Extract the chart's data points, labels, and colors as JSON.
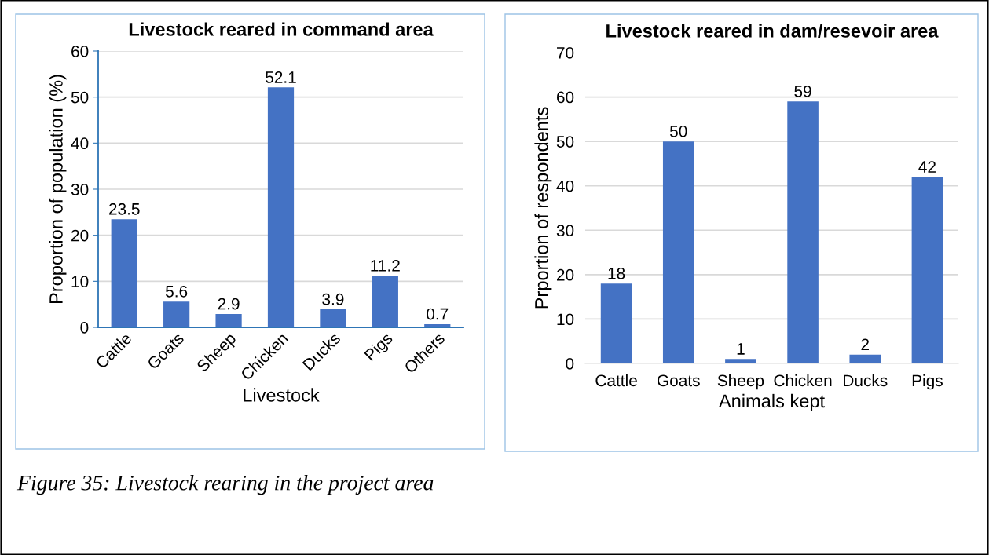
{
  "chart_data": [
    {
      "type": "bar",
      "title": "Livestock reared in command area",
      "xlabel": "Livestock",
      "ylabel": "Proportion of population (%)",
      "categories": [
        "Cattle",
        "Goats",
        "Sheep",
        "Chicken",
        "Ducks",
        "Pigs",
        "Others"
      ],
      "values": [
        23.5,
        5.6,
        2.9,
        52.1,
        3.9,
        11.2,
        0.7
      ],
      "color": "#4472c4",
      "ylim": [
        0,
        60
      ],
      "yticks": [
        0,
        10,
        20,
        30,
        40,
        50,
        60
      ],
      "grid": "y",
      "data_labels": true,
      "annotations": [
        "Figure 35: Livestock rearing in the project area"
      ]
    },
    {
      "type": "bar",
      "title": "Livestock reared in dam/resevoir area",
      "xlabel": "Animals kept",
      "ylabel": "Prportion of respondents",
      "categories": [
        "Cattle",
        "Goats",
        "Sheep",
        "Chicken",
        "Ducks",
        "Pigs"
      ],
      "values": [
        18,
        50,
        1,
        59,
        2,
        42
      ],
      "color": "#4472c4",
      "ylim": [
        0,
        70
      ],
      "yticks": [
        0,
        10,
        20,
        30,
        40,
        50,
        60,
        70
      ],
      "grid": "y",
      "data_labels": true
    }
  ]
}
